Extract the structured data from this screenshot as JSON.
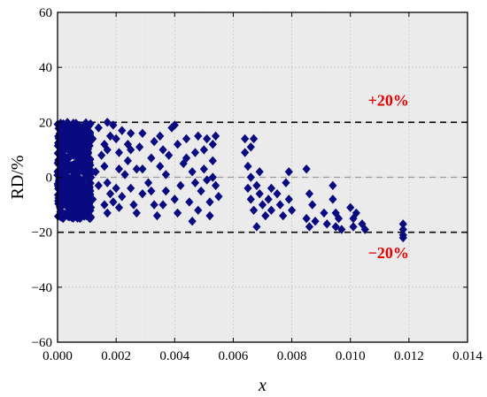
{
  "chart_data": {
    "type": "scatter",
    "title": "",
    "xlabel": "x",
    "ylabel": "RD/%",
    "xlim": [
      0,
      0.014
    ],
    "ylim": [
      -60,
      60
    ],
    "xticks": [
      0,
      0.002,
      0.004,
      0.006,
      0.008,
      0.01,
      0.012,
      0.014
    ],
    "xtick_labels": [
      "0.000",
      "0.002",
      "0.004",
      "0.006",
      "0.008",
      "0.010",
      "0.012",
      "0.014"
    ],
    "yticks": [
      -60,
      -40,
      -20,
      0,
      20,
      40,
      60
    ],
    "ytick_labels": [
      "−60",
      "−40",
      "−20",
      "0",
      "20",
      "40",
      "60"
    ],
    "grid": true,
    "marker": "diamond",
    "marker_color": "#0a0a80",
    "background_color": "#ebebeb",
    "reference_lines": [
      {
        "y": 20,
        "style": "dashed",
        "color": "#000000"
      },
      {
        "y": 0,
        "style": "dashed",
        "color": "#9a9a9a"
      },
      {
        "y": -20,
        "style": "dashed",
        "color": "#000000"
      }
    ],
    "annotations": [
      {
        "text": "+20%",
        "x": 0.0113,
        "y": 28,
        "color": "#e00000"
      },
      {
        "text": "−20%",
        "x": 0.0113,
        "y": -27.5,
        "color": "#e00000"
      }
    ],
    "series": [
      {
        "points": [
          [
            0.0011,
            -6
          ],
          [
            0.0012,
            -8
          ],
          [
            0.0014,
            -3
          ],
          [
            0.0013,
            2
          ],
          [
            0.0015,
            8
          ],
          [
            0.0016,
            12
          ],
          [
            0.0012,
            14
          ],
          [
            0.0014,
            18
          ],
          [
            0.0017,
            20
          ],
          [
            0.0019,
            19
          ],
          [
            0.0018,
            15
          ],
          [
            0.0017,
            10
          ],
          [
            0.0016,
            4
          ],
          [
            0.0017,
            -2
          ],
          [
            0.0018,
            -6
          ],
          [
            0.0016,
            -10
          ],
          [
            0.0017,
            -13
          ],
          [
            0.0019,
            -9
          ],
          [
            0.002,
            -4
          ],
          [
            0.0021,
            3
          ],
          [
            0.0021,
            9
          ],
          [
            0.002,
            14
          ],
          [
            0.0022,
            17
          ],
          [
            0.0021,
            -11
          ],
          [
            0.0022,
            -7
          ],
          [
            0.0023,
            1
          ],
          [
            0.0024,
            6
          ],
          [
            0.0024,
            12
          ],
          [
            0.0025,
            16
          ],
          [
            0.0025,
            -4
          ],
          [
            0.0026,
            -10
          ],
          [
            0.0027,
            -13
          ],
          [
            0.0027,
            3
          ],
          [
            0.0028,
            11
          ],
          [
            0.0029,
            16
          ],
          [
            0.0029,
            -6
          ],
          [
            0.0031,
            -2
          ],
          [
            0.0032,
            7
          ],
          [
            0.0033,
            13
          ],
          [
            0.0033,
            -10
          ],
          [
            0.0034,
            -14
          ],
          [
            0.0035,
            4
          ],
          [
            0.0036,
            10
          ],
          [
            0.0035,
            15
          ],
          [
            0.0037,
            -5
          ],
          [
            0.0037,
            1
          ],
          [
            0.0038,
            8
          ],
          [
            0.0039,
            18
          ],
          [
            0.004,
            19
          ],
          [
            0.0041,
            12
          ],
          [
            0.004,
            -8
          ],
          [
            0.0041,
            -13
          ],
          [
            0.0042,
            -3
          ],
          [
            0.0043,
            5
          ],
          [
            0.0044,
            14
          ],
          [
            0.0045,
            -9
          ],
          [
            0.0046,
            -16
          ],
          [
            0.0046,
            2
          ],
          [
            0.0047,
            9
          ],
          [
            0.0048,
            15
          ],
          [
            0.0048,
            -12
          ],
          [
            0.0049,
            -5
          ],
          [
            0.005,
            3
          ],
          [
            0.005,
            10
          ],
          [
            0.0051,
            14
          ],
          [
            0.0051,
            -1
          ],
          [
            0.0052,
            -9
          ],
          [
            0.0052,
            -14
          ],
          [
            0.0053,
            6
          ],
          [
            0.0053,
            12
          ],
          [
            0.0054,
            15
          ],
          [
            0.0054,
            -3
          ],
          [
            0.0055,
            -7
          ],
          [
            0.0053,
            0
          ],
          [
            0.0032,
            -5
          ],
          [
            0.0036,
            -10
          ],
          [
            0.0044,
            7
          ],
          [
            0.0047,
            -2
          ],
          [
            0.0025,
            10
          ],
          [
            0.0029,
            3
          ],
          [
            0.0064,
            14
          ],
          [
            0.0066,
            11
          ],
          [
            0.0067,
            14
          ],
          [
            0.0065,
            4
          ],
          [
            0.0066,
            0
          ],
          [
            0.0065,
            -4
          ],
          [
            0.0066,
            -8
          ],
          [
            0.0064,
            9
          ],
          [
            0.0067,
            -12
          ],
          [
            0.0068,
            -18
          ],
          [
            0.0068,
            -3
          ],
          [
            0.0069,
            2
          ],
          [
            0.0069,
            -6
          ],
          [
            0.007,
            -10
          ],
          [
            0.0071,
            -14
          ],
          [
            0.0072,
            -8
          ],
          [
            0.0073,
            -12
          ],
          [
            0.0073,
            -4
          ],
          [
            0.0075,
            -6
          ],
          [
            0.0076,
            -10
          ],
          [
            0.0077,
            -14
          ],
          [
            0.0078,
            -2
          ],
          [
            0.0079,
            2
          ],
          [
            0.0079,
            -8
          ],
          [
            0.008,
            -12
          ],
          [
            0.0085,
            3
          ],
          [
            0.0086,
            -6
          ],
          [
            0.0085,
            -15
          ],
          [
            0.0086,
            -18
          ],
          [
            0.0087,
            -10
          ],
          [
            0.0088,
            -16
          ],
          [
            0.0091,
            -13
          ],
          [
            0.0092,
            -17
          ],
          [
            0.0094,
            -3
          ],
          [
            0.0094,
            -8
          ],
          [
            0.0095,
            -13
          ],
          [
            0.0095,
            -18
          ],
          [
            0.0096,
            -15
          ],
          [
            0.0097,
            -19
          ],
          [
            0.01,
            -11
          ],
          [
            0.0101,
            -15
          ],
          [
            0.0101,
            -18
          ],
          [
            0.0102,
            -13
          ],
          [
            0.0104,
            -17
          ],
          [
            0.0105,
            -19
          ],
          [
            0.0118,
            -17
          ],
          [
            0.0118,
            -19
          ],
          [
            0.0118,
            -21
          ],
          [
            0.0118,
            -22
          ]
        ]
      }
    ]
  }
}
